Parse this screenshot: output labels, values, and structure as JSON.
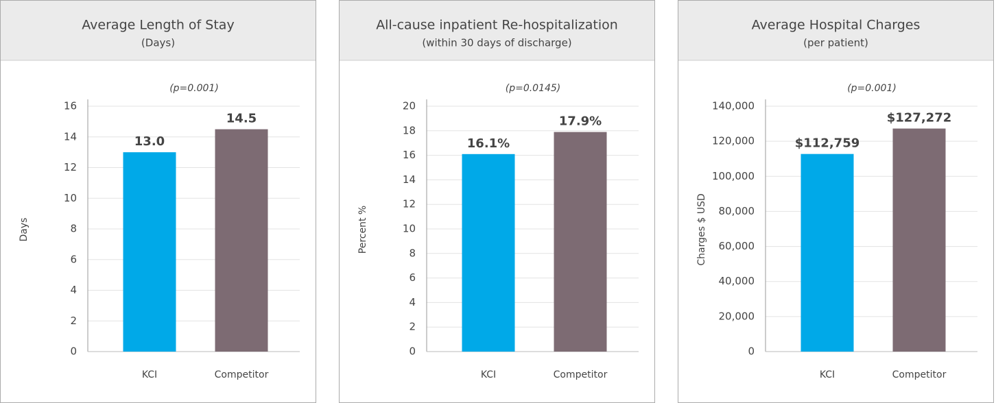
{
  "chart_data": [
    {
      "type": "bar",
      "title": "Average Length of Stay",
      "subtitle": "(Days)",
      "annotation": "(p=0.001)",
      "ylabel": "Days",
      "categories": [
        "KCI",
        "Competitor"
      ],
      "values": [
        13.0,
        14.5
      ],
      "value_labels": [
        "13.0",
        "14.5"
      ],
      "colors": [
        "#00a9e8",
        "#7d6b73"
      ],
      "ylim": [
        0,
        16
      ],
      "yticks": [
        0,
        2,
        4,
        6,
        8,
        10,
        12,
        14,
        16
      ],
      "grid": true
    },
    {
      "type": "bar",
      "title": "All-cause inpatient Re-hospitalization",
      "subtitle": "(within 30 days of discharge)",
      "annotation": "(p=0.0145)",
      "ylabel": "Percent %",
      "categories": [
        "KCI",
        "Competitor"
      ],
      "values": [
        16.1,
        17.9
      ],
      "value_labels": [
        "16.1%",
        "17.9%"
      ],
      "colors": [
        "#00a9e8",
        "#7d6b73"
      ],
      "ylim": [
        0,
        20
      ],
      "yticks": [
        0,
        2,
        4,
        6,
        8,
        10,
        12,
        14,
        16,
        18,
        20
      ],
      "grid": true
    },
    {
      "type": "bar",
      "title": "Average Hospital Charges",
      "subtitle": "(per patient)",
      "annotation": "(p=0.001)",
      "ylabel": "Charges $ USD",
      "categories": [
        "KCI",
        "Competitor"
      ],
      "values": [
        112759,
        127272
      ],
      "value_labels": [
        "$112,759",
        "$127,272"
      ],
      "colors": [
        "#00a9e8",
        "#7d6b73"
      ],
      "ylim": [
        0,
        140000
      ],
      "yticks": [
        0,
        {
          "value": 20000,
          "label": "20,000"
        },
        {
          "value": 40000,
          "label": "40,000"
        },
        {
          "value": 60000,
          "label": "60,000"
        },
        {
          "value": 80000,
          "label": "80,000"
        },
        {
          "value": 100000,
          "label": "100,000"
        },
        {
          "value": 120000,
          "label": "120,000"
        },
        {
          "value": 140000,
          "label": "140,000"
        }
      ],
      "grid": true
    }
  ]
}
